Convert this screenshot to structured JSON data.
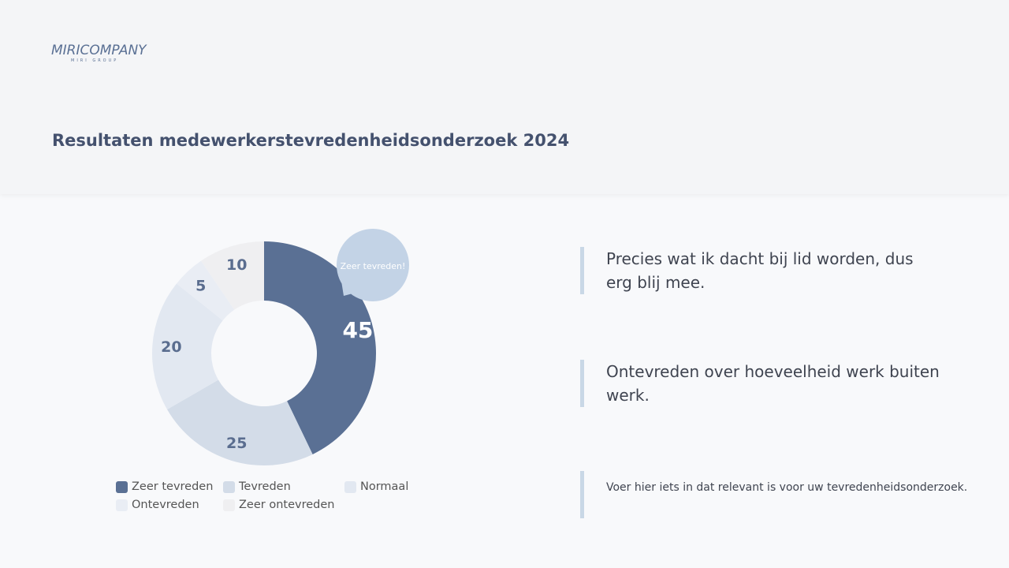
{
  "logo": {
    "main": "MIRICOMPANY",
    "sub": "MIRI GROUP"
  },
  "title": "Resultaten medewerkerstevredenheidsonderzoek 2024",
  "chart_data": {
    "type": "pie",
    "donut": true,
    "categories": [
      "Zeer tevreden",
      "Tevreden",
      "Normaal",
      "Ontevreden",
      "Zeer ontevreden"
    ],
    "values": [
      45,
      25,
      20,
      5,
      10
    ],
    "colors": [
      "#5a7094",
      "#d3dce8",
      "#e2e8f1",
      "#e9edf4",
      "#efeff1"
    ],
    "label_colors": [
      "#ffffff",
      "#5a6d8f",
      "#5a6d8f",
      "#5a6d8f",
      "#5a6d8f"
    ],
    "legend": "bottom",
    "callout": "Zeer tevreden!"
  },
  "quotes": [
    "Precies wat ik dacht bij lid worden, dus erg blij mee.",
    "Ontevreden over hoeveelheid werk buiten  werk.",
    "Voer hier iets in dat relevant is voor uw tevredenheidsonderzoek."
  ]
}
